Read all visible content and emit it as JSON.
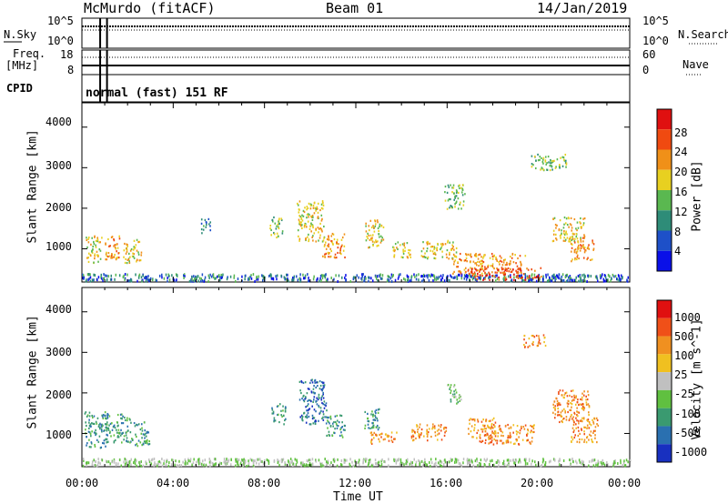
{
  "header": {
    "station": "McMurdo (fitACF)",
    "beam": "Beam 01",
    "date": "14/Jan/2019"
  },
  "side_labels": {
    "nsky": "N.Sky",
    "nsearch": "N.Search",
    "freq_line1": "Freq.",
    "freq_line2": "[MHz]",
    "nave": "Nave",
    "cpid": "CPID"
  },
  "noise_panel": {
    "ylim_labels": [
      "10^5",
      "10^0"
    ],
    "right_labels": [
      "10^5",
      "10^0"
    ]
  },
  "freq_panel": {
    "left_ticks": [
      "18",
      "8"
    ],
    "right_ticks": [
      "60",
      "0"
    ]
  },
  "cpid_text": "normal (fast) 151 RF",
  "x_axis": {
    "label": "Time UT",
    "ticks": [
      "00:00",
      "04:00",
      "08:00",
      "12:00",
      "16:00",
      "20:00",
      "00:00"
    ]
  },
  "chart_data": [
    {
      "type": "heatmap",
      "name": "power",
      "xlabel": "Time UT",
      "ylabel": "Slant Range [km]",
      "x_ticks": [
        "00:00",
        "04:00",
        "08:00",
        "12:00",
        "16:00",
        "20:00",
        "00:00"
      ],
      "y_ticks": [
        "1000",
        "2000",
        "3000",
        "4000"
      ],
      "ylim": [
        180,
        4600
      ],
      "colorbar_label": "Power [dB]",
      "colorbar_ticks": [
        "28",
        "24",
        "20",
        "16",
        "12",
        "8",
        "4"
      ],
      "colors": [
        "#0a10e8",
        "#1e50c8",
        "#2e8c78",
        "#5ab850",
        "#e8d020",
        "#f09018",
        "#f04a10",
        "#e01010"
      ],
      "regions": [
        {
          "t": 0.5,
          "r": 1000,
          "dt": 0.35,
          "dr": 350,
          "level": 4
        },
        {
          "t": 1.3,
          "r": 1050,
          "dt": 0.35,
          "dr": 300,
          "level": 5
        },
        {
          "t": 2.2,
          "r": 950,
          "dt": 0.4,
          "dr": 300,
          "level": 4
        },
        {
          "t": 5.4,
          "r": 1600,
          "dt": 0.2,
          "dr": 200,
          "level": 2
        },
        {
          "t": 8.5,
          "r": 1550,
          "dt": 0.3,
          "dr": 250,
          "level": 3
        },
        {
          "t": 10.0,
          "r": 1700,
          "dt": 0.6,
          "dr": 500,
          "level": 4
        },
        {
          "t": 11.0,
          "r": 1100,
          "dt": 0.5,
          "dr": 300,
          "level": 5
        },
        {
          "t": 12.8,
          "r": 1400,
          "dt": 0.4,
          "dr": 350,
          "level": 4
        },
        {
          "t": 14.0,
          "r": 1000,
          "dt": 0.4,
          "dr": 200,
          "level": 4
        },
        {
          "t": 15.6,
          "r": 1000,
          "dt": 0.8,
          "dr": 220,
          "level": 4
        },
        {
          "t": 16.3,
          "r": 2300,
          "dt": 0.45,
          "dr": 300,
          "level": 3
        },
        {
          "t": 17.8,
          "r": 650,
          "dt": 1.6,
          "dr": 250,
          "level": 5
        },
        {
          "t": 18.5,
          "r": 400,
          "dt": 1.6,
          "dr": 150,
          "level": 6
        },
        {
          "t": 20.4,
          "r": 3150,
          "dt": 0.8,
          "dr": 200,
          "level": 3
        },
        {
          "t": 21.3,
          "r": 1500,
          "dt": 0.7,
          "dr": 300,
          "level": 4
        },
        {
          "t": 21.9,
          "r": 1000,
          "dt": 0.5,
          "dr": 300,
          "level": 5
        }
      ]
    },
    {
      "type": "heatmap",
      "name": "velocity",
      "xlabel": "Time UT",
      "ylabel": "Slant Range [km]",
      "x_ticks": [
        "00:00",
        "04:00",
        "08:00",
        "12:00",
        "16:00",
        "20:00",
        "00:00"
      ],
      "y_ticks": [
        "1000",
        "2000",
        "3000",
        "4000"
      ],
      "ylim": [
        180,
        4600
      ],
      "colorbar_label": "Velocity [m s^-1]",
      "colorbar_ticks": [
        "1000",
        "500",
        "100",
        "25",
        "-25",
        "-100",
        "-500",
        "-1000"
      ],
      "colors": [
        "#1830c0",
        "#2a70b0",
        "#3a9a70",
        "#60c040",
        "#c0c0c0",
        "#f0c020",
        "#f09020",
        "#f05018",
        "#e01010"
      ],
      "regions": [
        {
          "t": 0.6,
          "r": 1100,
          "dt": 0.5,
          "dr": 450,
          "level": 2
        },
        {
          "t": 1.6,
          "r": 1150,
          "dt": 0.6,
          "dr": 350,
          "level": 2
        },
        {
          "t": 2.6,
          "r": 1000,
          "dt": 0.35,
          "dr": 300,
          "level": 2
        },
        {
          "t": 8.6,
          "r": 1500,
          "dt": 0.3,
          "dr": 250,
          "level": 2
        },
        {
          "t": 10.1,
          "r": 1800,
          "dt": 0.6,
          "dr": 550,
          "level": 1
        },
        {
          "t": 11.1,
          "r": 1200,
          "dt": 0.4,
          "dr": 300,
          "level": 2
        },
        {
          "t": 12.7,
          "r": 1400,
          "dt": 0.35,
          "dr": 300,
          "level": 2
        },
        {
          "t": 13.2,
          "r": 900,
          "dt": 0.6,
          "dr": 150,
          "level": 6
        },
        {
          "t": 15.2,
          "r": 1050,
          "dt": 0.8,
          "dr": 200,
          "level": 6
        },
        {
          "t": 16.3,
          "r": 2000,
          "dt": 0.3,
          "dr": 250,
          "level": 3
        },
        {
          "t": 17.5,
          "r": 1150,
          "dt": 0.6,
          "dr": 250,
          "level": 6
        },
        {
          "t": 18.6,
          "r": 1000,
          "dt": 1.2,
          "dr": 250,
          "level": 6
        },
        {
          "t": 19.8,
          "r": 3300,
          "dt": 0.5,
          "dr": 150,
          "level": 6
        },
        {
          "t": 21.4,
          "r": 1700,
          "dt": 0.8,
          "dr": 400,
          "level": 6
        },
        {
          "t": 22.0,
          "r": 1100,
          "dt": 0.6,
          "dr": 300,
          "level": 6
        }
      ]
    }
  ]
}
